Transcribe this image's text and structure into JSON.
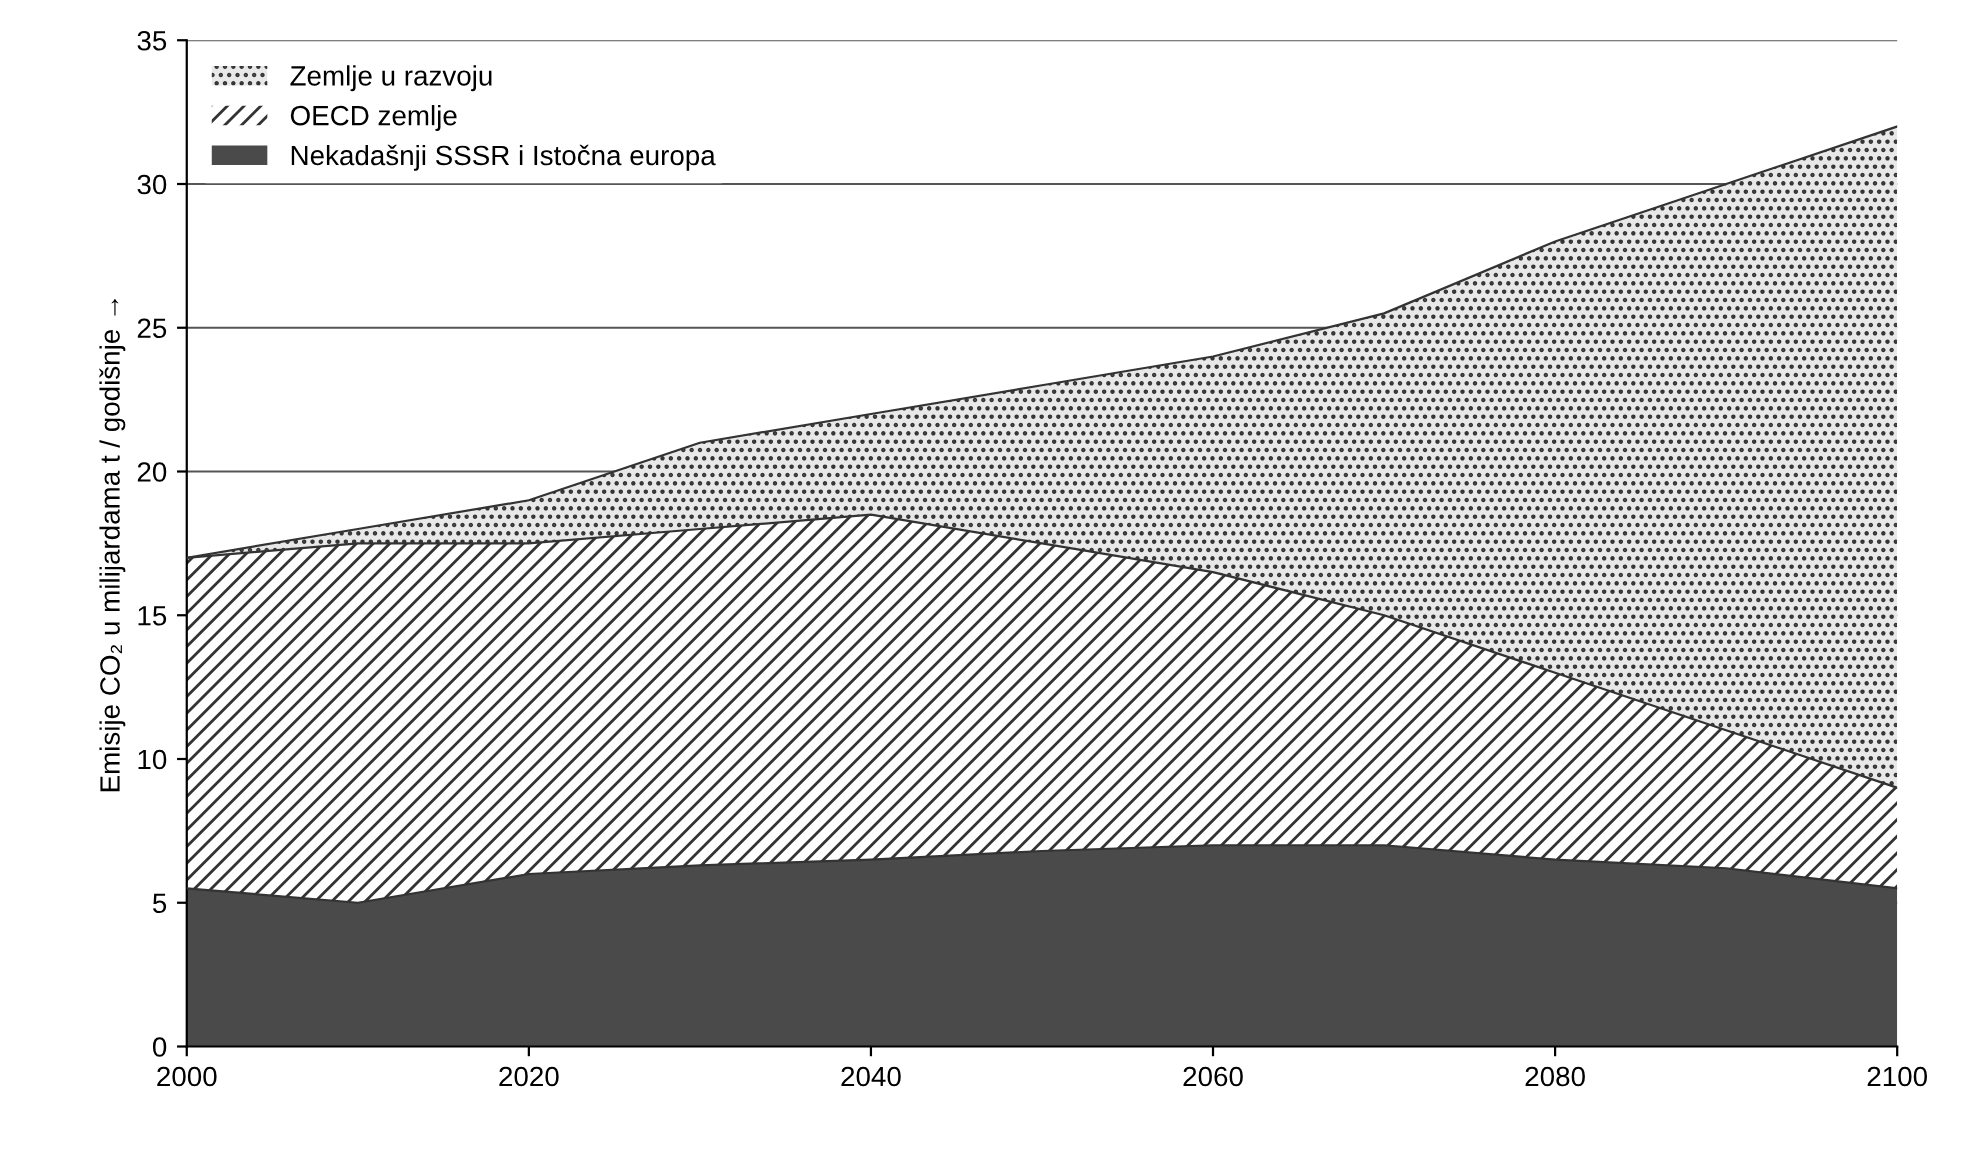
{
  "chart_data": {
    "type": "area",
    "stacked": true,
    "ylabel": "Emisije CO₂ u milijardama t / godišnje →",
    "x": [
      2000,
      2010,
      2020,
      2030,
      2040,
      2050,
      2060,
      2070,
      2080,
      2090,
      2100
    ],
    "series": [
      {
        "name": "Nekadašnji SSSR i Istočna europa",
        "color": "#4a4a4a",
        "values": [
          5.5,
          5,
          6,
          6.3,
          6.5,
          6.8,
          7,
          7,
          6.5,
          6.2,
          5.5
        ]
      },
      {
        "name": "OECD zemlje",
        "color": "#ffffff",
        "values": [
          11.5,
          12.5,
          11.5,
          11.7,
          12,
          10.7,
          9.5,
          8,
          6.5,
          4.8,
          3.5
        ]
      },
      {
        "name": "Zemlje u razvoju",
        "color": "#e8e8e8",
        "values": [
          0,
          0.5,
          1.5,
          3,
          3.5,
          5.5,
          7.5,
          10.5,
          15,
          19,
          23
        ]
      }
    ],
    "xlim": [
      2000,
      2100
    ],
    "xticks": [
      2000,
      2020,
      2040,
      2060,
      2080,
      2100
    ],
    "ylim": [
      0,
      35
    ],
    "yticks": [
      0,
      5,
      10,
      15,
      20,
      25,
      30,
      35
    ],
    "grid": "y",
    "legend": "top left"
  }
}
